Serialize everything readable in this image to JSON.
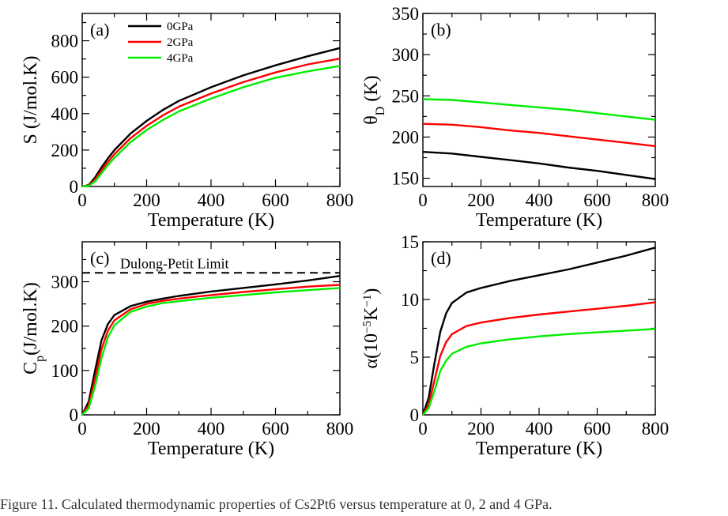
{
  "caption": "Figure 11. Calculated thermodynamic properties of Cs2Pt6 versus temperature at 0, 2 and 4 GPa.",
  "colors": {
    "0GPa": "#000000",
    "2GPa": "#ff0000",
    "4GPa": "#00ee00"
  },
  "chart_data": [
    {
      "type": "line",
      "panel_label": "(a)",
      "xlabel": "Temperature (K)",
      "ylabel": "S (J/mol.K)",
      "xlim": [
        0,
        800
      ],
      "ylim": [
        0,
        950
      ],
      "xticks": [
        0,
        200,
        400,
        600,
        800
      ],
      "yticks": [
        0,
        200,
        400,
        600,
        800
      ],
      "legend": {
        "position": "top",
        "entries": [
          "0GPa",
          "2GPa",
          "4GPa"
        ]
      },
      "x": [
        0,
        20,
        40,
        60,
        80,
        100,
        150,
        200,
        250,
        300,
        400,
        500,
        600,
        700,
        800
      ],
      "series": [
        {
          "name": "0GPa",
          "values": [
            0,
            8,
            50,
            105,
            155,
            200,
            290,
            360,
            420,
            470,
            545,
            610,
            665,
            715,
            760
          ]
        },
        {
          "name": "2GPa",
          "values": [
            0,
            5,
            38,
            88,
            135,
            178,
            265,
            333,
            390,
            438,
            510,
            573,
            626,
            670,
            702
          ]
        },
        {
          "name": "4GPa",
          "values": [
            0,
            3,
            28,
            72,
            117,
            158,
            243,
            310,
            365,
            412,
            483,
            545,
            597,
            632,
            662
          ]
        }
      ]
    },
    {
      "type": "line",
      "panel_label": "(b)",
      "xlabel": "Temperature (K)",
      "ylabel": "θD (K)",
      "xlim": [
        0,
        800
      ],
      "ylim": [
        140,
        350
      ],
      "xticks": [
        0,
        200,
        400,
        600,
        800
      ],
      "yticks": [
        150,
        200,
        250,
        300,
        350
      ],
      "x": [
        0,
        100,
        200,
        300,
        400,
        500,
        600,
        700,
        800
      ],
      "series": [
        {
          "name": "0GPa",
          "values": [
            182,
            180,
            176,
            172,
            168,
            163,
            159,
            154,
            149
          ]
        },
        {
          "name": "2GPa",
          "values": [
            216,
            215,
            212,
            208,
            205,
            201,
            197,
            193,
            189
          ]
        },
        {
          "name": "4GPa",
          "values": [
            246,
            245,
            242,
            239,
            236,
            233,
            229,
            225,
            221
          ]
        }
      ]
    },
    {
      "type": "line",
      "panel_label": "(c)",
      "xlabel": "Temperature (K)",
      "ylabel": "Cp(J/mol.K)",
      "xlim": [
        0,
        800
      ],
      "ylim": [
        0,
        390
      ],
      "xticks": [
        0,
        200,
        400,
        600,
        800
      ],
      "yticks": [
        0,
        100,
        200,
        300
      ],
      "annotation": {
        "text": "Dulong-Petit Limit",
        "y": 320
      },
      "x": [
        0,
        20,
        40,
        60,
        80,
        100,
        150,
        200,
        250,
        300,
        400,
        500,
        600,
        700,
        800
      ],
      "series": [
        {
          "name": "0GPa",
          "values": [
            0,
            30,
            100,
            168,
            205,
            225,
            245,
            255,
            262,
            268,
            278,
            286,
            294,
            303,
            313
          ]
        },
        {
          "name": "2GPa",
          "values": [
            0,
            22,
            82,
            148,
            190,
            213,
            238,
            250,
            257,
            262,
            270,
            277,
            283,
            289,
            293
          ]
        },
        {
          "name": "4GPa",
          "values": [
            0,
            15,
            65,
            128,
            175,
            202,
            232,
            244,
            252,
            256,
            264,
            270,
            276,
            281,
            286
          ]
        }
      ]
    },
    {
      "type": "line",
      "panel_label": "(d)",
      "xlabel": "Temperature (K)",
      "ylabel": "α(10−5K−1)",
      "xlim": [
        0,
        800
      ],
      "ylim": [
        0,
        15
      ],
      "xticks": [
        0,
        200,
        400,
        600,
        800
      ],
      "yticks": [
        0,
        5,
        10,
        15
      ],
      "x": [
        0,
        20,
        40,
        60,
        80,
        100,
        150,
        200,
        300,
        400,
        500,
        600,
        700,
        800
      ],
      "series": [
        {
          "name": "0GPa",
          "values": [
            0,
            1.5,
            4.5,
            7.2,
            8.8,
            9.7,
            10.6,
            11.0,
            11.6,
            12.1,
            12.6,
            13.2,
            13.8,
            14.5
          ]
        },
        {
          "name": "2GPa",
          "values": [
            0,
            0.9,
            3.0,
            5.1,
            6.3,
            7.0,
            7.7,
            8.0,
            8.4,
            8.7,
            8.95,
            9.2,
            9.45,
            9.75
          ]
        },
        {
          "name": "4GPa",
          "values": [
            0,
            0.6,
            2.1,
            3.8,
            4.7,
            5.3,
            5.9,
            6.2,
            6.55,
            6.8,
            7.0,
            7.15,
            7.3,
            7.45
          ]
        }
      ]
    }
  ]
}
